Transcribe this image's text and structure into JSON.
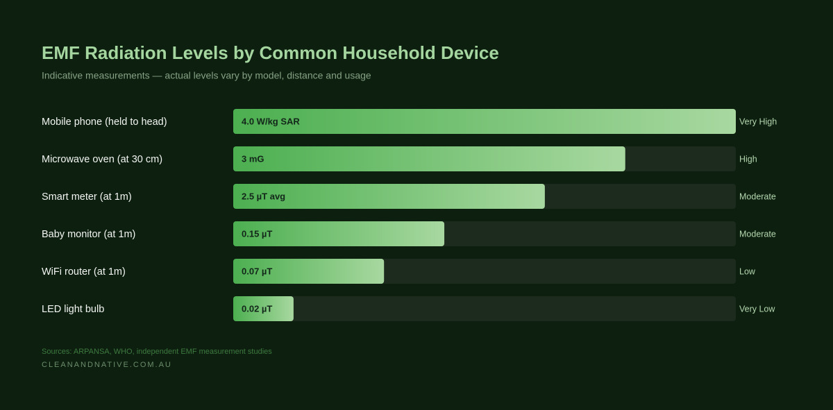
{
  "chart_data": {
    "type": "bar",
    "orientation": "horizontal",
    "title": "EMF Radiation Levels by Common Household Device",
    "subtitle": "Indicative measurements — actual levels vary by model, distance and usage",
    "categories": [
      "Mobile phone (held to head)",
      "Microwave oven (at 30 cm)",
      "Smart meter (at 1m)",
      "Baby monitor (at 1m)",
      "WiFi router (at 1m)",
      "LED light bulb"
    ],
    "values": [
      100,
      78,
      62,
      42,
      30,
      12
    ],
    "readings": [
      "4.0 W/kg SAR",
      "3 mG",
      "2.5 µT avg",
      "0.15 µT",
      "0.07 µT",
      "0.02 µT"
    ],
    "levels": [
      "Very High",
      "High",
      "Moderate",
      "Moderate",
      "Low",
      "Very Low"
    ],
    "xlim": [
      0,
      100
    ],
    "gradient": [
      "#4caf50",
      "#a8d8a0"
    ],
    "track_color": "#1d2b1e",
    "sources": "Sources: ARPANSA, WHO, independent EMF measurement studies",
    "site": "CLEANANDNATIVE.COM.AU"
  }
}
